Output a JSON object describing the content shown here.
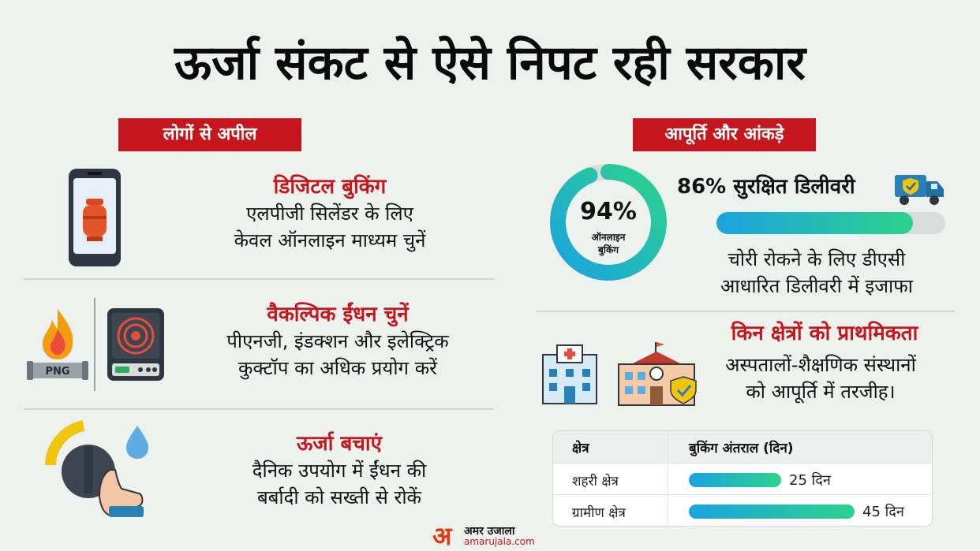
{
  "title": "ऊर्जा संकट से ऐसे निपट रही सरकार",
  "left_section": {
    "label": "लोगों से अपील",
    "items": [
      {
        "heading": "डिजिटल बुकिंग",
        "line1": "एलपीजी सिलेंडर के लिए",
        "line2": "केवल ऑनलाइन माध्यम चुनें",
        "icon": "phone-gas-cylinder-icon"
      },
      {
        "heading": "वैकल्पिक ईंधन चुनें",
        "line1": "पीएनजी, इंडक्शन और इलेक्ट्रिक",
        "line2": "कुक्टॉप का अधिक प्रयोग करें",
        "icon": "png-flame-induction-icon",
        "png_tag": "PNG"
      },
      {
        "heading": "ऊर्जा बचाएं",
        "line1": "दैनिक उपयोग में ईंधन की",
        "line2": "बर्बादी को सख्ती से रोकें",
        "icon": "knob-hand-drop-icon"
      }
    ]
  },
  "right_section": {
    "label": "आपूर्ति और आंकड़े",
    "donut": {
      "value": 94,
      "pct_text": "94%",
      "sub1": "ऑनलाइन",
      "sub2": "बुकिंग"
    },
    "delivery": {
      "text": "86% सुरक्षित डिलीवरी",
      "value": 86,
      "icon": "delivery-truck-shield-icon"
    },
    "dac": {
      "line1": "चोरी रोकने के लिए डीएसी",
      "line2": "आधारित डिलीवरी में इजाफा"
    },
    "priority": {
      "heading": "किन क्षेत्रों को प्राथमिकता",
      "line1": "अस्पतालों-शैक्षणिक संस्थानों",
      "line2": "को आपूर्ति में तरजीह।",
      "icons": [
        "hospital-icon",
        "school-shield-icon"
      ]
    },
    "table": {
      "col1": "क्षेत्र",
      "col2": "बुकिंग अंतराल (दिन)",
      "rows": [
        {
          "label": "शहरी क्षेत्र",
          "value": 25,
          "value_text": "25 दिन"
        },
        {
          "label": "ग्रामीण क्षेत्र",
          "value": 45,
          "value_text": "45 दिन"
        }
      ]
    }
  },
  "logo": {
    "mark": "अ",
    "name": "अमर उजाला",
    "url": "amarujala.com"
  },
  "colors": {
    "accent_red": "#c4161c",
    "gradient_start": "#1aa3e0",
    "gradient_end": "#2dd28c",
    "background": "#eef2ee"
  }
}
